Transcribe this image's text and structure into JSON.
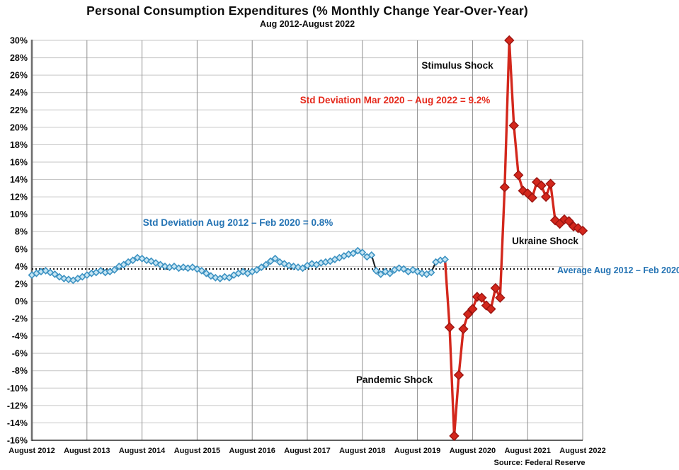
{
  "title": "Personal Consumption Expenditures (% Monthly Change Year-Over-Year)",
  "subtitle": "Aug 2012-August 2022",
  "source": "Source: Federal Reserve",
  "annotations": {
    "stimulus_shock": "Stimulus Shock",
    "std_dev_red": "Std Deviation Mar 2020 – Aug 2022 = 9.2%",
    "std_dev_blue": "Std Deviation Aug 2012 – Feb 2020 = 0.8%",
    "ukraine_shock": "Ukraine Shock",
    "pandemic_shock": "Pandemic Shock",
    "average_label": "Average Aug 2012 – Feb 2020"
  },
  "colors": {
    "blue_line": "#7cc1e0",
    "blue_marker_stroke": "#3c92c2",
    "blue_marker_fill": "#c6e5f3",
    "red_line": "#d3271c",
    "red_marker_fill": "#d3271c",
    "red_marker_stroke": "#9c1410",
    "grid_horizontal": "#c6c6c6",
    "grid_vertical": "#8f8f8f",
    "axis_left_spine": "#6e6e6e",
    "axis_bottom_spine": "#2b2b2b",
    "dotted_average": "#1a1a1a",
    "annotation_red_text": "#e5291b",
    "annotation_blue_text": "#2574b4"
  },
  "chart_data": {
    "type": "line",
    "title": "Personal Consumption Expenditures (% Monthly Change Year-Over-Year)",
    "subtitle": "Aug 2012-August 2022",
    "grid": true,
    "legend": "none",
    "y_axis": {
      "min": -16,
      "max": 30,
      "step": 2,
      "unit": "%",
      "tick_labels": [
        "30%",
        "28%",
        "26%",
        "24%",
        "22%",
        "20%",
        "18%",
        "16%",
        "14%",
        "12%",
        "10%",
        "8%",
        "6%",
        "4%",
        "2%",
        "0%",
        "-2%",
        "-4%",
        "-6%",
        "-8%",
        "-10%",
        "-12%",
        "-14%",
        "-16%"
      ]
    },
    "x_axis": {
      "months_span": 120,
      "ticks": [
        {
          "month_index": 0,
          "label": "August 2012"
        },
        {
          "month_index": 12,
          "label": "August 2013"
        },
        {
          "month_index": 24,
          "label": "August 2014"
        },
        {
          "month_index": 36,
          "label": "August 2015"
        },
        {
          "month_index": 48,
          "label": "August 2016"
        },
        {
          "month_index": 60,
          "label": "August 2017"
        },
        {
          "month_index": 72,
          "label": "August 2018"
        },
        {
          "month_index": 84,
          "label": "August 2019"
        },
        {
          "month_index": 96,
          "label": "August 2020"
        },
        {
          "month_index": 108,
          "label": "August 2021"
        },
        {
          "month_index": 120,
          "label": "August 2022"
        }
      ]
    },
    "average_line": {
      "value": 3.7,
      "style": "dotted",
      "start_month_index": 0,
      "end_month_index": 114,
      "label": "Average Aug 2012 – Feb 2020"
    },
    "series": [
      {
        "name": "Aug 2012 – Feb 2020 (std dev 0.8%)",
        "color_key": "blue",
        "start_month_index": 0,
        "months": [
          "2012-08",
          "2012-09",
          "2012-10",
          "2012-11",
          "2012-12",
          "2013-01",
          "2013-02",
          "2013-03",
          "2013-04",
          "2013-05",
          "2013-06",
          "2013-07",
          "2013-08",
          "2013-09",
          "2013-10",
          "2013-11",
          "2013-12",
          "2014-01",
          "2014-02",
          "2014-03",
          "2014-04",
          "2014-05",
          "2014-06",
          "2014-07",
          "2014-08",
          "2014-09",
          "2014-10",
          "2014-11",
          "2014-12",
          "2015-01",
          "2015-02",
          "2015-03",
          "2015-04",
          "2015-05",
          "2015-06",
          "2015-07",
          "2015-08",
          "2015-09",
          "2015-10",
          "2015-11",
          "2015-12",
          "2016-01",
          "2016-02",
          "2016-03",
          "2016-04",
          "2016-05",
          "2016-06",
          "2016-07",
          "2016-08",
          "2016-09",
          "2016-10",
          "2016-11",
          "2016-12",
          "2017-01",
          "2017-02",
          "2017-03",
          "2017-04",
          "2017-05",
          "2017-06",
          "2017-07",
          "2017-08",
          "2017-09",
          "2017-10",
          "2017-11",
          "2017-12",
          "2018-01",
          "2018-02",
          "2018-03",
          "2018-04",
          "2018-05",
          "2018-06",
          "2018-07",
          "2018-08",
          "2018-09",
          "2018-10",
          "2018-11",
          "2018-12",
          "2019-01",
          "2019-02",
          "2019-03",
          "2019-04",
          "2019-05",
          "2019-06",
          "2019-07",
          "2019-08",
          "2019-09",
          "2019-10",
          "2019-11",
          "2019-12",
          "2020-01",
          "2020-02"
        ],
        "values": [
          3.0,
          3.2,
          3.4,
          3.5,
          3.3,
          3.1,
          2.8,
          2.6,
          2.5,
          2.4,
          2.6,
          2.8,
          3.0,
          3.2,
          3.3,
          3.5,
          3.3,
          3.4,
          3.6,
          4.0,
          4.2,
          4.5,
          4.7,
          5.0,
          4.9,
          4.7,
          4.6,
          4.4,
          4.2,
          4.0,
          3.9,
          4.0,
          3.8,
          3.9,
          3.8,
          3.9,
          3.7,
          3.5,
          3.2,
          2.9,
          2.7,
          2.6,
          2.8,
          2.7,
          3.0,
          3.2,
          3.4,
          3.2,
          3.4,
          3.6,
          3.9,
          4.2,
          4.6,
          4.9,
          4.5,
          4.3,
          4.1,
          4.0,
          3.9,
          3.8,
          4.1,
          4.3,
          4.2,
          4.4,
          4.5,
          4.6,
          4.8,
          5.0,
          5.2,
          5.4,
          5.5,
          5.8,
          5.6,
          5.1,
          5.3,
          3.5,
          3.1,
          3.4,
          3.2,
          3.6,
          3.8,
          3.7,
          3.4,
          3.6,
          3.4,
          3.2,
          3.1,
          3.3,
          4.5,
          4.7,
          4.8
        ],
        "std_dev_note": "Std Deviation Aug 2012 – Feb 2020 = 0.8%"
      },
      {
        "name": "Mar 2020 – Aug 2022 (std dev 9.2%)",
        "color_key": "red",
        "start_month_index": 91,
        "lead_in_from_previous_series": true,
        "months": [
          "2020-03",
          "2020-04",
          "2020-05",
          "2020-06",
          "2020-07",
          "2020-08",
          "2020-09",
          "2020-10",
          "2020-11",
          "2020-12",
          "2021-01",
          "2021-02",
          "2021-03",
          "2021-04",
          "2021-05",
          "2021-06",
          "2021-07",
          "2021-08",
          "2021-09",
          "2021-10",
          "2021-11",
          "2021-12",
          "2022-01",
          "2022-02",
          "2022-03",
          "2022-04",
          "2022-05",
          "2022-06",
          "2022-07",
          "2022-08"
        ],
        "values": [
          -3.0,
          -15.5,
          -8.5,
          -3.2,
          -1.5,
          -0.9,
          0.5,
          0.4,
          -0.5,
          -0.9,
          1.5,
          0.4,
          13.1,
          30.0,
          20.2,
          14.5,
          12.7,
          12.4,
          11.9,
          13.7,
          13.3,
          12.0,
          13.5,
          9.3,
          8.9,
          9.4,
          9.2,
          8.6,
          8.4,
          8.1
        ],
        "std_dev_note": "Std Deviation Mar 2020 – Aug 2022 = 9.2%"
      }
    ],
    "black_connector_segments": [
      [
        74,
        76
      ],
      [
        87,
        88
      ]
    ]
  }
}
